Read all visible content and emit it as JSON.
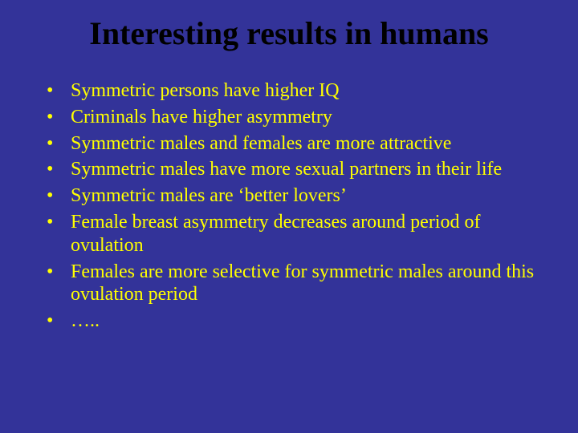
{
  "slide": {
    "title": "Interesting results in humans",
    "title_color": "#000000",
    "title_fontsize": 40,
    "title_fontweight": "bold",
    "background_color": "#333399",
    "bullet_color": "#ffff00",
    "bullet_fontsize": 24,
    "bullets": [
      "Symmetric persons have higher IQ",
      "Criminals have higher asymmetry",
      "Symmetric males and females are more attractive",
      "Symmetric males have more sexual partners in their life",
      "Symmetric males are ‘better lovers’",
      "Female breast asymmetry decreases around period of ovulation",
      "Females are more selective for symmetric males around this ovulation period",
      "….."
    ]
  }
}
